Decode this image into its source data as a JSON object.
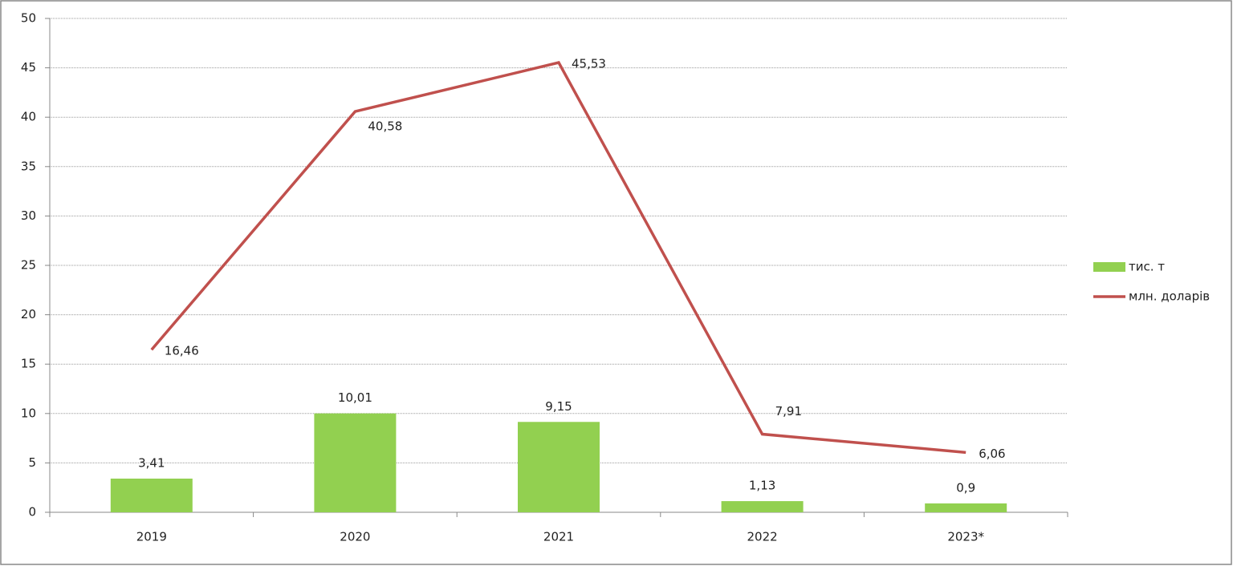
{
  "chart_data": {
    "type": "bar",
    "categories": [
      "2019",
      "2020",
      "2021",
      "2022",
      "2023*"
    ],
    "series": [
      {
        "name": "тис. т",
        "type": "bar",
        "color": "#92d050",
        "values": [
          3.41,
          10.01,
          9.15,
          1.13,
          0.9
        ],
        "value_labels": [
          "3,41",
          "10,01",
          "9,15",
          "1,13",
          "0,9"
        ]
      },
      {
        "name": "млн. доларів",
        "type": "line",
        "color": "#c0504d",
        "values": [
          16.46,
          40.58,
          45.53,
          7.91,
          6.06
        ],
        "value_labels": [
          "16,46",
          "40,58",
          "45,53",
          "7,91",
          "6,06"
        ]
      }
    ],
    "ylim": [
      0,
      50
    ],
    "yticks": [
      0,
      5,
      10,
      15,
      20,
      25,
      30,
      35,
      40,
      45,
      50
    ],
    "grid": true,
    "legend": "right"
  }
}
